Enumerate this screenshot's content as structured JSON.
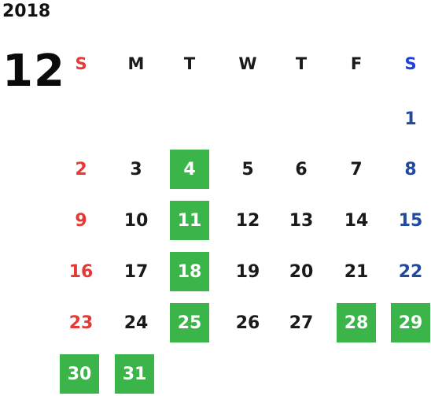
{
  "year": "2018",
  "month": "12",
  "weekdays": [
    "S",
    "M",
    "T",
    "W",
    "T",
    "F",
    "S"
  ],
  "highlight_color": "#3bb54a",
  "sunday_color": "#e53935",
  "saturday_color": "#1f4a9e",
  "days": {
    "d1": "1",
    "d2": "2",
    "d3": "3",
    "d4": "4",
    "d5": "5",
    "d6": "6",
    "d7": "7",
    "d8": "8",
    "d9": "9",
    "d10": "10",
    "d11": "11",
    "d12": "12",
    "d13": "13",
    "d14": "14",
    "d15": "15",
    "d16": "16",
    "d17": "17",
    "d18": "18",
    "d19": "19",
    "d20": "20",
    "d21": "21",
    "d22": "22",
    "d23": "23",
    "d24": "24",
    "d25": "25",
    "d26": "26",
    "d27": "27",
    "d28": "28",
    "d29": "29",
    "d30": "30",
    "d31": "31"
  },
  "highlighted_days": [
    "4",
    "11",
    "18",
    "25",
    "28",
    "29",
    "30",
    "31"
  ]
}
